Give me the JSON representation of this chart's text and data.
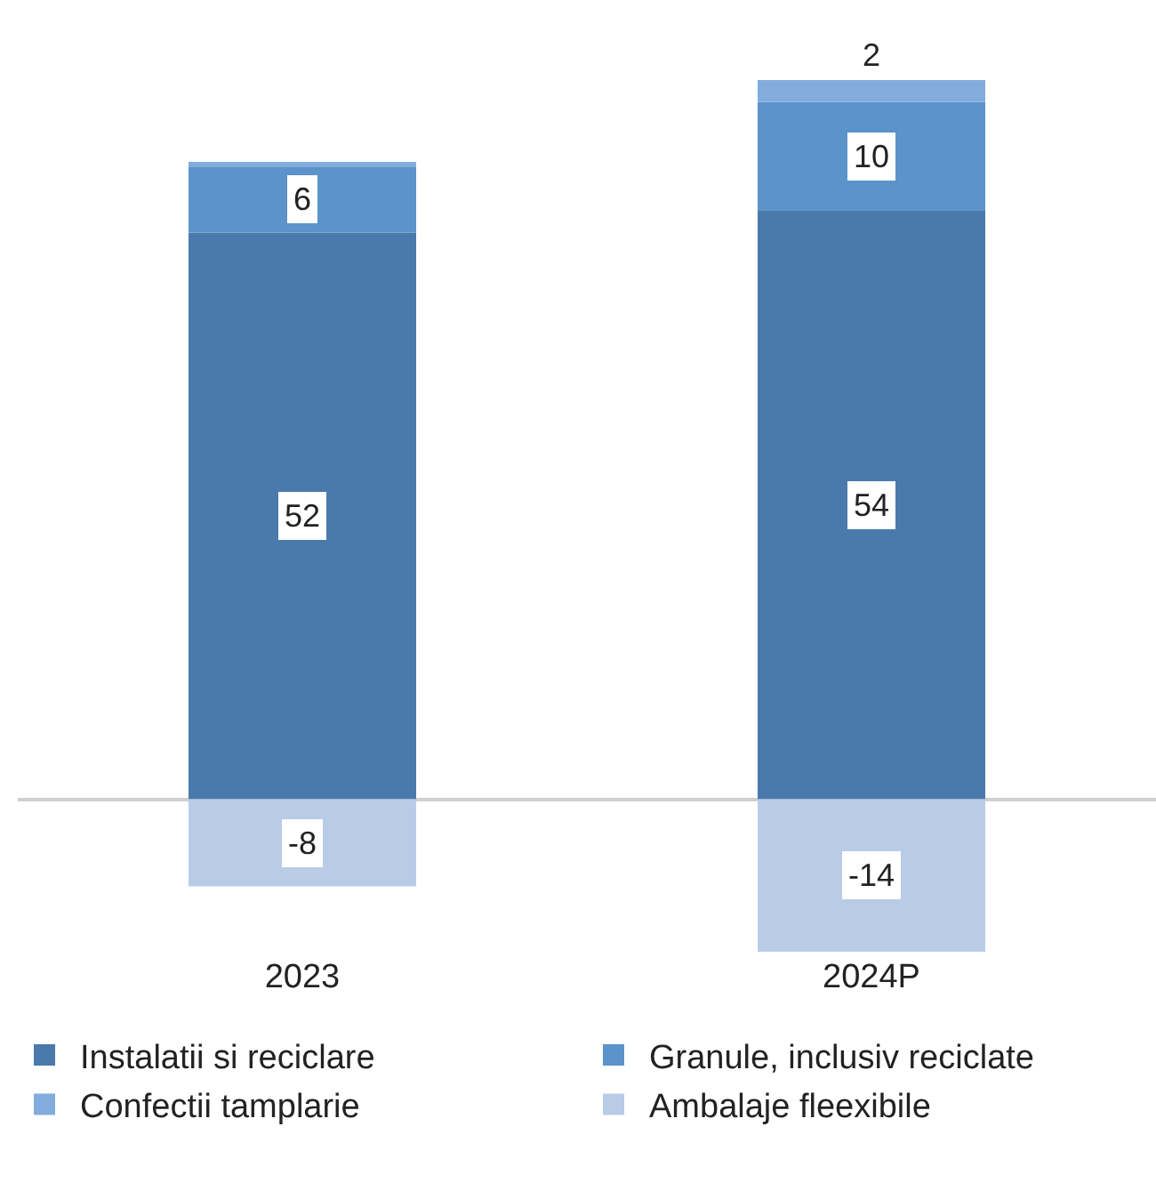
{
  "chart_data": {
    "type": "bar",
    "stacked": true,
    "categories": [
      "2023",
      "2024P"
    ],
    "series": [
      {
        "name": "Instalatii si reciclare",
        "color": "#4a7aab",
        "values": [
          52,
          54
        ],
        "value_labels": [
          "52",
          "54"
        ]
      },
      {
        "name": "Granule, inclusiv reciclate",
        "color": "#5b93cb",
        "values": [
          6,
          10
        ],
        "value_labels": [
          "6",
          "10"
        ]
      },
      {
        "name": "Confectii tamplarie",
        "color": "#82acdc",
        "values": [
          0.5,
          2
        ],
        "value_labels": [
          null,
          "2"
        ]
      },
      {
        "name": "Ambalaje fleexibile",
        "color": "#b8cce8",
        "values": [
          -8,
          -14
        ],
        "value_labels": [
          "-8",
          "-14"
        ]
      }
    ],
    "ylim": [
      -14,
      66
    ],
    "legend": "bottom",
    "grid": false,
    "tick_labels": "x"
  }
}
